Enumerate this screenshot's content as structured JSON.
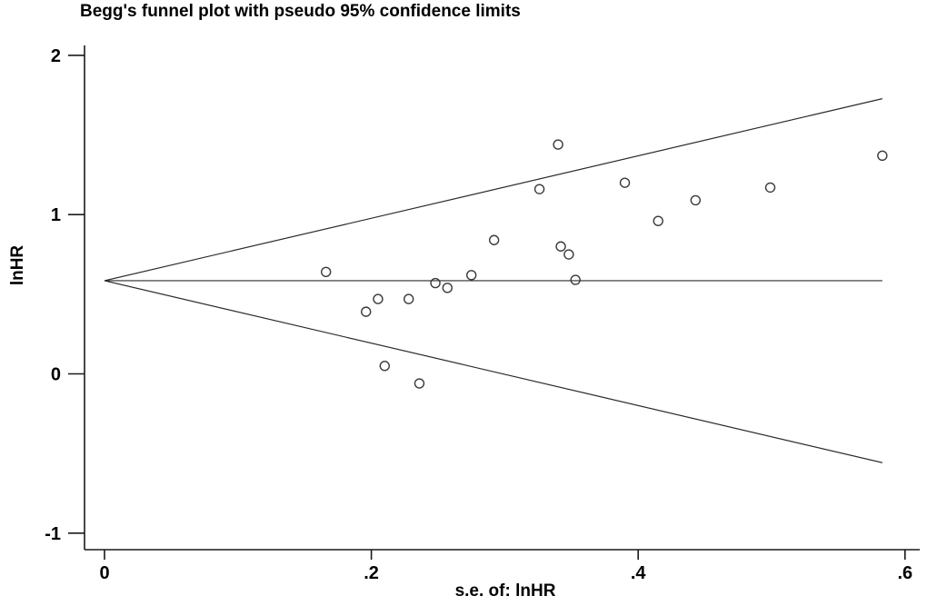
{
  "title": "Begg's funnel plot with pseudo 95% confidence limits",
  "colors": {
    "background": "#ffffff",
    "axis": "#1a1a1a",
    "line": "#2b2b2b",
    "marker": "#3a3a3a",
    "text": "#000000"
  },
  "chart_data": {
    "type": "scatter",
    "title": "Begg's funnel plot with pseudo 95% confidence limits",
    "xlabel": "s.e. of: lnHR",
    "ylabel": "lnHR",
    "xlim": [
      0,
      0.611
    ],
    "ylim": [
      -1.1,
      2.06
    ],
    "x_ticks": [
      0,
      0.2,
      0.4,
      0.6
    ],
    "x_tick_labels": [
      "0",
      ".2",
      ".4",
      ".6"
    ],
    "y_ticks": [
      2,
      1,
      0,
      -1
    ],
    "y_tick_labels": [
      "2",
      "1",
      "0",
      "-1"
    ],
    "grid": false,
    "legend": false,
    "marker_style": "open-circle",
    "pooled_estimate_lnHR": 0.585,
    "confidence_multiplier": 1.96,
    "funnel_se_max": 0.583,
    "upper_limit_at_se_max": 1.73,
    "lower_limit_at_se_max": -0.56,
    "points": [
      {
        "se": 0.166,
        "lnHR": 0.64
      },
      {
        "se": 0.196,
        "lnHR": 0.39
      },
      {
        "se": 0.205,
        "lnHR": 0.47
      },
      {
        "se": 0.21,
        "lnHR": 0.05
      },
      {
        "se": 0.228,
        "lnHR": 0.47
      },
      {
        "se": 0.236,
        "lnHR": -0.06
      },
      {
        "se": 0.248,
        "lnHR": 0.57
      },
      {
        "se": 0.257,
        "lnHR": 0.54
      },
      {
        "se": 0.275,
        "lnHR": 0.62
      },
      {
        "se": 0.292,
        "lnHR": 0.84
      },
      {
        "se": 0.326,
        "lnHR": 1.16
      },
      {
        "se": 0.34,
        "lnHR": 1.44
      },
      {
        "se": 0.342,
        "lnHR": 0.8
      },
      {
        "se": 0.348,
        "lnHR": 0.75
      },
      {
        "se": 0.353,
        "lnHR": 0.59
      },
      {
        "se": 0.39,
        "lnHR": 1.2
      },
      {
        "se": 0.415,
        "lnHR": 0.96
      },
      {
        "se": 0.443,
        "lnHR": 1.09
      },
      {
        "se": 0.499,
        "lnHR": 1.17
      },
      {
        "se": 0.583,
        "lnHR": 1.37
      }
    ]
  }
}
